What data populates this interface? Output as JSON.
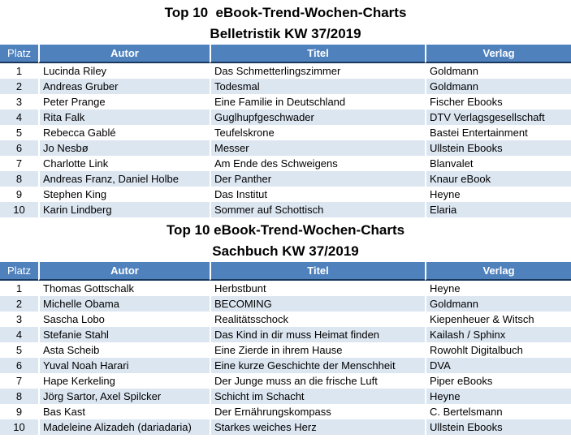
{
  "colors": {
    "header_bg": "#4F81BD",
    "header_text": "#FFFFFF",
    "header_border": "#17375D",
    "alt_row_bg": "#DCE6F1",
    "title_color": "#000000"
  },
  "tables": [
    {
      "title_line1": "Top 10  eBook-Trend-Wochen-Charts",
      "title_line2": "Belletristik KW 37/2019",
      "columns": [
        "Platz",
        "Autor",
        "Titel",
        "Verlag"
      ],
      "rows": [
        {
          "platz": "1",
          "autor": "Lucinda Riley",
          "titel": "Das Schmetterlingszimmer",
          "verlag": "Goldmann"
        },
        {
          "platz": "2",
          "autor": "Andreas Gruber",
          "titel": "Todesmal",
          "verlag": "Goldmann"
        },
        {
          "platz": "3",
          "autor": "Peter Prange",
          "titel": "Eine Familie in Deutschland",
          "verlag": "Fischer Ebooks"
        },
        {
          "platz": "4",
          "autor": "Rita Falk",
          "titel": "Guglhupfgeschwader",
          "verlag": "DTV Verlagsgesellschaft"
        },
        {
          "platz": "5",
          "autor": "Rebecca Gablé",
          "titel": "Teufelskrone",
          "verlag": "Bastei Entertainment"
        },
        {
          "platz": "6",
          "autor": "Jo Nesbø",
          "titel": "Messer",
          "verlag": "Ullstein Ebooks"
        },
        {
          "platz": "7",
          "autor": "Charlotte Link",
          "titel": "Am Ende des Schweigens",
          "verlag": "Blanvalet"
        },
        {
          "platz": "8",
          "autor": "Andreas Franz, Daniel Holbe",
          "titel": "Der Panther",
          "verlag": "Knaur eBook"
        },
        {
          "platz": "9",
          "autor": "Stephen King",
          "titel": "Das Institut",
          "verlag": "Heyne"
        },
        {
          "platz": "10",
          "autor": "Karin Lindberg",
          "titel": "Sommer auf Schottisch",
          "verlag": "Elaria"
        }
      ]
    },
    {
      "title_line1": "Top 10 eBook-Trend-Wochen-Charts",
      "title_line2": "Sachbuch KW 37/2019",
      "columns": [
        "Platz",
        "Autor",
        "Titel",
        "Verlag"
      ],
      "rows": [
        {
          "platz": "1",
          "autor": "Thomas Gottschalk",
          "titel": "Herbstbunt",
          "verlag": "Heyne"
        },
        {
          "platz": "2",
          "autor": "Michelle Obama",
          "titel": "BECOMING",
          "verlag": "Goldmann"
        },
        {
          "platz": "3",
          "autor": "Sascha Lobo",
          "titel": "Realitätsschock",
          "verlag": "Kiepenheuer & Witsch"
        },
        {
          "platz": "4",
          "autor": "Stefanie Stahl",
          "titel": "Das Kind in dir muss Heimat finden",
          "verlag": "Kailash / Sphinx"
        },
        {
          "platz": "5",
          "autor": "Asta Scheib",
          "titel": "Eine Zierde in ihrem Hause",
          "verlag": "Rowohlt Digitalbuch"
        },
        {
          "platz": "6",
          "autor": "Yuval Noah Harari",
          "titel": "Eine kurze Geschichte der Menschheit",
          "verlag": "DVA"
        },
        {
          "platz": "7",
          "autor": "Hape Kerkeling",
          "titel": "Der Junge muss an die frische Luft",
          "verlag": "Piper eBooks"
        },
        {
          "platz": "8",
          "autor": "Jörg Sartor, Axel Spilcker",
          "titel": "Schicht im Schacht",
          "verlag": "Heyne"
        },
        {
          "platz": "9",
          "autor": "Bas Kast",
          "titel": "Der Ernährungskompass",
          "verlag": "C. Bertelsmann"
        },
        {
          "platz": "10",
          "autor": "Madeleine Alizadeh (dariadaria)",
          "titel": "Starkes weiches Herz",
          "verlag": "Ullstein Ebooks"
        }
      ]
    }
  ]
}
